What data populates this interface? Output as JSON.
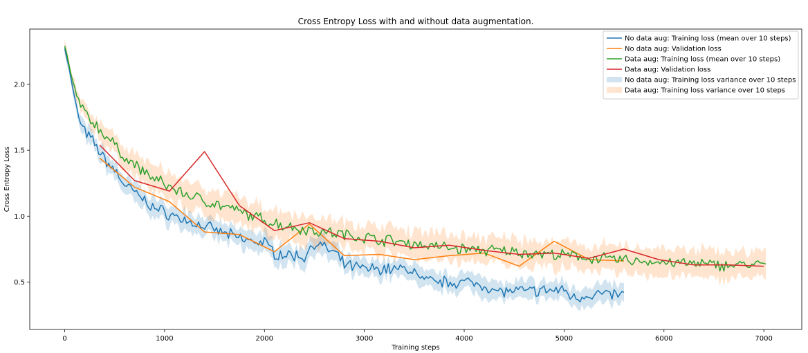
{
  "chart_data": {
    "type": "line",
    "title": "Cross Entropy Loss with and without data augmentation.",
    "xlabel": "Training steps",
    "ylabel": "Cross Entropy Loss",
    "xlim": [
      -350,
      7380
    ],
    "ylim": [
      0.14,
      2.42
    ],
    "xticks": [
      0,
      1000,
      2000,
      3000,
      4000,
      5000,
      6000,
      7000
    ],
    "yticks": [
      0.5,
      1.0,
      1.5,
      2.0
    ],
    "xtick_labels": [
      "0",
      "1000",
      "2000",
      "3000",
      "4000",
      "5000",
      "6000",
      "7000"
    ],
    "ytick_labels": [
      "0.5",
      "1.0",
      "1.5",
      "2.0"
    ],
    "legend_position": "top-right",
    "grid": false,
    "series": [
      {
        "name": "No data aug: Training loss (mean over 10 steps)",
        "kind": "line",
        "color": "#1f77b4",
        "x_range": [
          0,
          5600
        ],
        "step": 20,
        "trend": [
          [
            0,
            2.28
          ],
          [
            50,
            2.1
          ],
          [
            100,
            1.88
          ],
          [
            150,
            1.72
          ],
          [
            200,
            1.64
          ],
          [
            300,
            1.55
          ],
          [
            400,
            1.43
          ],
          [
            500,
            1.35
          ],
          [
            600,
            1.24
          ],
          [
            700,
            1.18
          ],
          [
            800,
            1.12
          ],
          [
            900,
            1.06
          ],
          [
            1000,
            1.03
          ],
          [
            1200,
            0.97
          ],
          [
            1400,
            0.92
          ],
          [
            1600,
            0.87
          ],
          [
            1800,
            0.82
          ],
          [
            2000,
            0.8
          ],
          [
            2100,
            0.72
          ],
          [
            2400,
            0.69
          ],
          [
            2500,
            0.8
          ],
          [
            2700,
            0.72
          ],
          [
            2800,
            0.63
          ],
          [
            3000,
            0.6
          ],
          [
            3300,
            0.6
          ],
          [
            3500,
            0.59
          ],
          [
            3550,
            0.52
          ],
          [
            3700,
            0.5
          ],
          [
            4000,
            0.5
          ],
          [
            4200,
            0.48
          ],
          [
            4300,
            0.43
          ],
          [
            4600,
            0.43
          ],
          [
            5000,
            0.44
          ],
          [
            5100,
            0.38
          ],
          [
            5300,
            0.41
          ],
          [
            5600,
            0.4
          ]
        ]
      },
      {
        "name": "No data aug: Validation loss",
        "kind": "line",
        "color": "#ff7f0e",
        "x": [
          350,
          700,
          1050,
          1400,
          1750,
          2100,
          2450,
          2800,
          3150,
          3500,
          3850,
          4200,
          4550,
          4900,
          5250,
          5600
        ],
        "values": [
          1.44,
          1.22,
          1.11,
          0.88,
          0.86,
          0.73,
          0.94,
          0.7,
          0.71,
          0.67,
          0.7,
          0.72,
          0.62,
          0.81,
          0.67,
          0.66
        ]
      },
      {
        "name": "Data aug: Training loss (mean over 10 steps)",
        "kind": "line",
        "color": "#2ca02c",
        "x_range": [
          0,
          7020
        ],
        "step": 20,
        "trend": [
          [
            0,
            2.3
          ],
          [
            50,
            2.12
          ],
          [
            100,
            1.95
          ],
          [
            200,
            1.78
          ],
          [
            400,
            1.62
          ],
          [
            600,
            1.45
          ],
          [
            800,
            1.33
          ],
          [
            1000,
            1.24
          ],
          [
            1200,
            1.17
          ],
          [
            1400,
            1.12
          ],
          [
            1600,
            1.07
          ],
          [
            1800,
            1.02
          ],
          [
            2000,
            0.97
          ],
          [
            2200,
            0.93
          ],
          [
            2400,
            0.9
          ],
          [
            2600,
            0.88
          ],
          [
            2800,
            0.86
          ],
          [
            3000,
            0.84
          ],
          [
            3200,
            0.82
          ],
          [
            3400,
            0.8
          ],
          [
            3600,
            0.78
          ],
          [
            4000,
            0.75
          ],
          [
            4500,
            0.73
          ],
          [
            5000,
            0.7
          ],
          [
            5500,
            0.67
          ],
          [
            6000,
            0.65
          ],
          [
            6500,
            0.63
          ],
          [
            7000,
            0.63
          ]
        ]
      },
      {
        "name": "Data aug: Validation loss",
        "kind": "line",
        "color": "#d62728",
        "x": [
          350,
          700,
          1050,
          1400,
          1750,
          2100,
          2450,
          2800,
          3150,
          3500,
          3850,
          4200,
          4550,
          4900,
          5250,
          5600,
          5950,
          6300,
          6650,
          7000
        ],
        "values": [
          1.54,
          1.27,
          1.19,
          1.49,
          1.08,
          0.89,
          0.95,
          0.83,
          0.81,
          0.76,
          0.78,
          0.74,
          0.71,
          0.72,
          0.68,
          0.75,
          0.67,
          0.63,
          0.63,
          0.62
        ]
      },
      {
        "name": "No data aug: Training loss variance over 10 steps",
        "kind": "band",
        "color": "#1f77b4",
        "opacity": 0.2,
        "follows": "No data aug: Training loss (mean over 10 steps)",
        "half_width_trend": [
          [
            0,
            0.04
          ],
          [
            500,
            0.07
          ],
          [
            2000,
            0.07
          ],
          [
            5600,
            0.07
          ]
        ]
      },
      {
        "name": "Data aug: Training loss variance over 10 steps",
        "kind": "band",
        "color": "#ff7f0e",
        "opacity": 0.2,
        "follows": "Data aug: Training loss (mean over 10 steps)",
        "half_width_trend": [
          [
            0,
            0.04
          ],
          [
            500,
            0.08
          ],
          [
            1000,
            0.1
          ],
          [
            3000,
            0.1
          ],
          [
            7020,
            0.1
          ]
        ]
      }
    ]
  }
}
